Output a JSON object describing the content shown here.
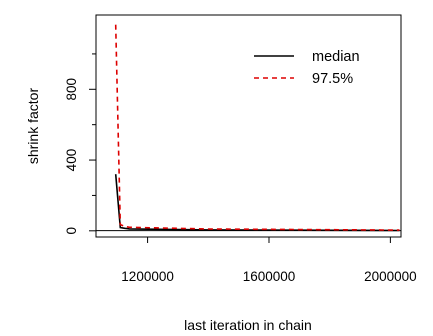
{
  "chart_data": {
    "type": "line",
    "title": "",
    "xlabel": "last iteration in chain",
    "ylabel": "shrink factor",
    "xlim": [
      1030000,
      2035000
    ],
    "ylim": [
      -35,
      1220
    ],
    "x_ticks": [
      1200000,
      1600000,
      2000000
    ],
    "x_tick_labels": [
      "1200000",
      "1600000",
      "2000000"
    ],
    "y_ticks": [
      0,
      400,
      800
    ],
    "y_tick_labels": [
      "0",
      "400",
      "800"
    ],
    "y_minor_ticks": [
      200,
      600,
      1000
    ],
    "reference_line": 1,
    "grid": false,
    "legend_position": "top-right",
    "series": [
      {
        "name": "median",
        "color": "#000000",
        "dash": "solid",
        "x": [
          1095000,
          1110000,
          1125000,
          1140000,
          1400000,
          2030000
        ],
        "y": [
          320,
          18,
          14,
          11,
          5,
          2
        ]
      },
      {
        "name": "97.5%",
        "color": "#dd0000",
        "dash": "dashed",
        "x": [
          1095000,
          1110000,
          1125000,
          1140000,
          1400000,
          2030000
        ],
        "y": [
          1165,
          35,
          25,
          20,
          10,
          4
        ]
      }
    ]
  }
}
